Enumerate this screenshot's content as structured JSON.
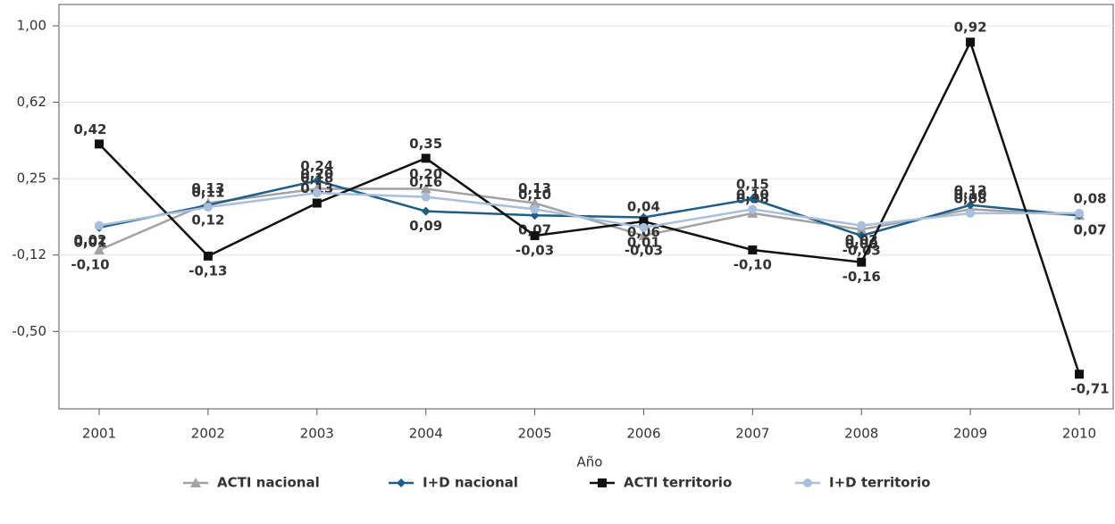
{
  "chart_data": {
    "type": "line",
    "x_label": "Año",
    "categories": [
      "2001",
      "2002",
      "2003",
      "2004",
      "2005",
      "2006",
      "2007",
      "2008",
      "2009",
      "2010"
    ],
    "ylim": [
      -0.88,
      1.105
    ],
    "yticks": [
      {
        "value": -0.5,
        "label": "-0,50"
      },
      {
        "value": -0.125,
        "label": "-0,12"
      },
      {
        "value": 0.25,
        "label": "0,25"
      },
      {
        "value": 0.625,
        "label": "0,62"
      },
      {
        "value": 1,
        "label": "1,00"
      }
    ],
    "grid": true,
    "legend": "bottom",
    "series": [
      {
        "name": "ACTI nacional",
        "color": "#a3a3a3",
        "marker": "triangle",
        "values": [
          -0.1,
          0.13,
          0.2,
          0.2,
          0.13,
          -0.03,
          0.08,
          0.0,
          0.1,
          0.07
        ],
        "value_labels": [
          "-0,10",
          "0,13",
          "0,20",
          "0,20",
          "0,13",
          "-0,03",
          "0,08",
          "0,00",
          "0,10",
          "0,07"
        ]
      },
      {
        "name": "I+D nacional",
        "color": "#1f5e86",
        "marker": "diamond",
        "values": [
          0.01,
          0.12,
          0.24,
          0.09,
          0.07,
          0.06,
          0.15,
          -0.03,
          0.12,
          0.07
        ],
        "value_labels": [
          "0,01",
          "0,12",
          "0,24",
          "0,09",
          "0,07",
          "0,06",
          "0,15",
          "-0,03",
          "0,12",
          "0,07"
        ]
      },
      {
        "name": "ACTI territorio",
        "color": "#111111",
        "marker": "square",
        "values": [
          0.42,
          -0.13,
          0.13,
          0.35,
          -0.03,
          0.04,
          -0.1,
          -0.16,
          0.92,
          -0.71
        ],
        "value_labels": [
          "0,42",
          "-0,13",
          "0,13",
          "0,35",
          "-0,03",
          "0,04",
          "-0,10",
          "-0,16",
          "0,92",
          "-0,71"
        ]
      },
      {
        "name": "I+D territorio",
        "color": "#a9bfdc",
        "marker": "circle",
        "values": [
          0.02,
          0.11,
          0.18,
          0.16,
          0.1,
          0.01,
          0.1,
          0.02,
          0.08,
          0.08
        ],
        "value_labels": [
          "0,02",
          "0,11",
          "0,18",
          "0,16",
          "0,10",
          "0,01",
          "0,10",
          "0,02",
          "0,08",
          "0,08"
        ]
      }
    ]
  }
}
